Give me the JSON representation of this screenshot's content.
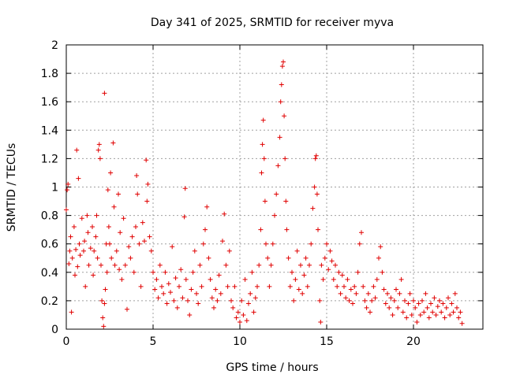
{
  "chart_data": {
    "type": "scatter",
    "title": "Day 341 of 2025, SRMTID for receiver myva",
    "xlabel": "GPS time / hours",
    "ylabel": "SRMTID / TECUs",
    "xlim": [
      0,
      24
    ],
    "ylim": [
      0,
      2
    ],
    "xticks": [
      "0",
      "5",
      "10",
      "15",
      "20"
    ],
    "xtick_values": [
      0,
      5,
      10,
      15,
      20
    ],
    "yticks": [
      "0",
      "0.2",
      "0.4",
      "0.6",
      "0.8",
      "1",
      "1.2",
      "1.4",
      "1.6",
      "1.8",
      "2"
    ],
    "ytick_values": [
      0,
      0.2,
      0.4,
      0.6,
      0.8,
      1.0,
      1.2,
      1.4,
      1.6,
      1.8,
      2.0
    ],
    "grid": true,
    "marker": "+",
    "color": "#e00000",
    "series": [
      {
        "name": "SRMTID",
        "points": [
          [
            0.0,
            0.84
          ],
          [
            0.05,
            0.98
          ],
          [
            0.1,
            1.02
          ],
          [
            0.15,
            0.46
          ],
          [
            0.2,
            0.55
          ],
          [
            0.25,
            0.65
          ],
          [
            0.3,
            0.12
          ],
          [
            0.35,
            0.5
          ],
          [
            0.45,
            0.72
          ],
          [
            0.5,
            0.38
          ],
          [
            0.55,
            0.56
          ],
          [
            0.6,
            1.26
          ],
          [
            0.65,
            0.44
          ],
          [
            0.7,
            1.06
          ],
          [
            0.75,
            0.6
          ],
          [
            0.8,
            0.52
          ],
          [
            0.9,
            0.78
          ],
          [
            1.0,
            0.55
          ],
          [
            1.05,
            0.62
          ],
          [
            1.1,
            0.3
          ],
          [
            1.2,
            0.8
          ],
          [
            1.25,
            0.68
          ],
          [
            1.3,
            0.45
          ],
          [
            1.4,
            0.57
          ],
          [
            1.5,
            0.72
          ],
          [
            1.55,
            0.38
          ],
          [
            1.6,
            0.55
          ],
          [
            1.7,
            0.65
          ],
          [
            1.75,
            0.8
          ],
          [
            1.8,
            0.5
          ],
          [
            1.85,
            1.26
          ],
          [
            1.9,
            1.3
          ],
          [
            1.95,
            1.2
          ],
          [
            2.0,
            0.45
          ],
          [
            2.05,
            0.2
          ],
          [
            2.1,
            0.08
          ],
          [
            2.15,
            0.02
          ],
          [
            2.2,
            0.18
          ],
          [
            2.2,
            1.66
          ],
          [
            2.25,
            0.28
          ],
          [
            2.3,
            0.6
          ],
          [
            2.35,
            0.4
          ],
          [
            2.4,
            0.98
          ],
          [
            2.45,
            0.72
          ],
          [
            2.5,
            0.6
          ],
          [
            2.55,
            1.1
          ],
          [
            2.6,
            0.5
          ],
          [
            2.7,
            1.31
          ],
          [
            2.75,
            0.86
          ],
          [
            2.8,
            0.45
          ],
          [
            2.9,
            0.55
          ],
          [
            3.0,
            0.95
          ],
          [
            3.05,
            0.42
          ],
          [
            3.1,
            0.68
          ],
          [
            3.2,
            0.35
          ],
          [
            3.3,
            0.78
          ],
          [
            3.4,
            0.45
          ],
          [
            3.5,
            0.14
          ],
          [
            3.6,
            0.58
          ],
          [
            3.7,
            0.5
          ],
          [
            3.8,
            0.65
          ],
          [
            3.9,
            0.4
          ],
          [
            4.0,
            0.72
          ],
          [
            4.05,
            1.08
          ],
          [
            4.1,
            0.95
          ],
          [
            4.2,
            0.6
          ],
          [
            4.3,
            0.3
          ],
          [
            4.4,
            0.75
          ],
          [
            4.5,
            0.62
          ],
          [
            4.6,
            1.19
          ],
          [
            4.65,
            0.9
          ],
          [
            4.7,
            1.02
          ],
          [
            4.8,
            0.65
          ],
          [
            4.9,
            0.55
          ],
          [
            5.0,
            0.4
          ],
          [
            5.1,
            0.28
          ],
          [
            5.2,
            0.35
          ],
          [
            5.3,
            0.22
          ],
          [
            5.4,
            0.45
          ],
          [
            5.5,
            0.3
          ],
          [
            5.6,
            0.25
          ],
          [
            5.7,
            0.4
          ],
          [
            5.8,
            0.18
          ],
          [
            5.9,
            0.32
          ],
          [
            6.0,
            0.26
          ],
          [
            6.1,
            0.58
          ],
          [
            6.2,
            0.2
          ],
          [
            6.3,
            0.36
          ],
          [
            6.4,
            0.15
          ],
          [
            6.5,
            0.3
          ],
          [
            6.6,
            0.42
          ],
          [
            6.7,
            0.22
          ],
          [
            6.8,
            0.79
          ],
          [
            6.85,
            0.99
          ],
          [
            6.9,
            0.35
          ],
          [
            7.0,
            0.2
          ],
          [
            7.1,
            0.1
          ],
          [
            7.2,
            0.28
          ],
          [
            7.3,
            0.4
          ],
          [
            7.4,
            0.55
          ],
          [
            7.5,
            0.25
          ],
          [
            7.6,
            0.18
          ],
          [
            7.7,
            0.45
          ],
          [
            7.8,
            0.3
          ],
          [
            7.9,
            0.6
          ],
          [
            8.0,
            0.7
          ],
          [
            8.1,
            0.86
          ],
          [
            8.2,
            0.5
          ],
          [
            8.3,
            0.35
          ],
          [
            8.4,
            0.22
          ],
          [
            8.5,
            0.15
          ],
          [
            8.6,
            0.28
          ],
          [
            8.7,
            0.2
          ],
          [
            8.8,
            0.38
          ],
          [
            8.9,
            0.25
          ],
          [
            9.0,
            0.62
          ],
          [
            9.1,
            0.81
          ],
          [
            9.2,
            0.45
          ],
          [
            9.3,
            0.3
          ],
          [
            9.4,
            0.55
          ],
          [
            9.5,
            0.2
          ],
          [
            9.6,
            0.15
          ],
          [
            9.7,
            0.3
          ],
          [
            9.8,
            0.08
          ],
          [
            9.9,
            0.12
          ],
          [
            10.0,
            0.05
          ],
          [
            10.1,
            0.2
          ],
          [
            10.2,
            0.1
          ],
          [
            10.3,
            0.35
          ],
          [
            10.4,
            0.06
          ],
          [
            10.5,
            0.18
          ],
          [
            10.6,
            0.25
          ],
          [
            10.7,
            0.4
          ],
          [
            10.8,
            0.12
          ],
          [
            10.9,
            0.22
          ],
          [
            11.0,
            0.3
          ],
          [
            11.1,
            0.45
          ],
          [
            11.2,
            0.7
          ],
          [
            11.25,
            1.1
          ],
          [
            11.3,
            1.3
          ],
          [
            11.35,
            1.47
          ],
          [
            11.4,
            1.2
          ],
          [
            11.45,
            0.9
          ],
          [
            11.5,
            0.6
          ],
          [
            11.6,
            0.5
          ],
          [
            11.7,
            0.3
          ],
          [
            11.8,
            0.45
          ],
          [
            11.9,
            0.6
          ],
          [
            12.0,
            0.8
          ],
          [
            12.1,
            0.95
          ],
          [
            12.2,
            1.15
          ],
          [
            12.3,
            1.35
          ],
          [
            12.35,
            1.6
          ],
          [
            12.4,
            1.72
          ],
          [
            12.45,
            1.85
          ],
          [
            12.5,
            1.88
          ],
          [
            12.55,
            1.5
          ],
          [
            12.6,
            1.2
          ],
          [
            12.65,
            0.9
          ],
          [
            12.7,
            0.7
          ],
          [
            12.8,
            0.5
          ],
          [
            12.9,
            0.3
          ],
          [
            13.0,
            0.4
          ],
          [
            13.1,
            0.2
          ],
          [
            13.2,
            0.35
          ],
          [
            13.3,
            0.55
          ],
          [
            13.4,
            0.28
          ],
          [
            13.5,
            0.45
          ],
          [
            13.6,
            0.25
          ],
          [
            13.7,
            0.38
          ],
          [
            13.8,
            0.5
          ],
          [
            13.9,
            0.3
          ],
          [
            14.0,
            0.45
          ],
          [
            14.1,
            0.6
          ],
          [
            14.2,
            0.85
          ],
          [
            14.3,
            1.0
          ],
          [
            14.35,
            1.2
          ],
          [
            14.4,
            1.22
          ],
          [
            14.45,
            0.95
          ],
          [
            14.5,
            0.7
          ],
          [
            14.6,
            0.2
          ],
          [
            14.65,
            0.05
          ],
          [
            14.7,
            0.45
          ],
          [
            14.8,
            0.35
          ],
          [
            14.9,
            0.5
          ],
          [
            15.0,
            0.6
          ],
          [
            15.1,
            0.42
          ],
          [
            15.2,
            0.55
          ],
          [
            15.3,
            0.48
          ],
          [
            15.4,
            0.35
          ],
          [
            15.5,
            0.45
          ],
          [
            15.6,
            0.3
          ],
          [
            15.7,
            0.4
          ],
          [
            15.8,
            0.25
          ],
          [
            15.9,
            0.38
          ],
          [
            16.0,
            0.3
          ],
          [
            16.1,
            0.22
          ],
          [
            16.2,
            0.35
          ],
          [
            16.3,
            0.2
          ],
          [
            16.4,
            0.28
          ],
          [
            16.5,
            0.18
          ],
          [
            16.6,
            0.3
          ],
          [
            16.7,
            0.25
          ],
          [
            16.8,
            0.4
          ],
          [
            16.9,
            0.6
          ],
          [
            17.0,
            0.68
          ],
          [
            17.1,
            0.3
          ],
          [
            17.2,
            0.2
          ],
          [
            17.3,
            0.15
          ],
          [
            17.4,
            0.25
          ],
          [
            17.5,
            0.12
          ],
          [
            17.6,
            0.2
          ],
          [
            17.7,
            0.3
          ],
          [
            17.8,
            0.22
          ],
          [
            17.9,
            0.35
          ],
          [
            18.0,
            0.5
          ],
          [
            18.1,
            0.58
          ],
          [
            18.2,
            0.4
          ],
          [
            18.3,
            0.28
          ],
          [
            18.4,
            0.18
          ],
          [
            18.5,
            0.25
          ],
          [
            18.6,
            0.15
          ],
          [
            18.7,
            0.22
          ],
          [
            18.8,
            0.1
          ],
          [
            18.9,
            0.2
          ],
          [
            19.0,
            0.28
          ],
          [
            19.1,
            0.15
          ],
          [
            19.2,
            0.25
          ],
          [
            19.3,
            0.35
          ],
          [
            19.4,
            0.12
          ],
          [
            19.5,
            0.2
          ],
          [
            19.6,
            0.08
          ],
          [
            19.7,
            0.18
          ],
          [
            19.8,
            0.25
          ],
          [
            19.9,
            0.1
          ],
          [
            20.0,
            0.2
          ],
          [
            20.1,
            0.15
          ],
          [
            20.2,
            0.05
          ],
          [
            20.3,
            0.18
          ],
          [
            20.4,
            0.1
          ],
          [
            20.5,
            0.2
          ],
          [
            20.6,
            0.12
          ],
          [
            20.7,
            0.25
          ],
          [
            20.8,
            0.15
          ],
          [
            20.9,
            0.08
          ],
          [
            21.0,
            0.18
          ],
          [
            21.1,
            0.12
          ],
          [
            21.2,
            0.22
          ],
          [
            21.3,
            0.1
          ],
          [
            21.4,
            0.16
          ],
          [
            21.5,
            0.2
          ],
          [
            21.6,
            0.12
          ],
          [
            21.7,
            0.18
          ],
          [
            21.8,
            0.08
          ],
          [
            21.9,
            0.15
          ],
          [
            22.0,
            0.22
          ],
          [
            22.1,
            0.1
          ],
          [
            22.2,
            0.18
          ],
          [
            22.3,
            0.12
          ],
          [
            22.4,
            0.25
          ],
          [
            22.5,
            0.15
          ],
          [
            22.6,
            0.08
          ],
          [
            22.7,
            0.12
          ],
          [
            22.8,
            0.04
          ]
        ]
      }
    ]
  }
}
